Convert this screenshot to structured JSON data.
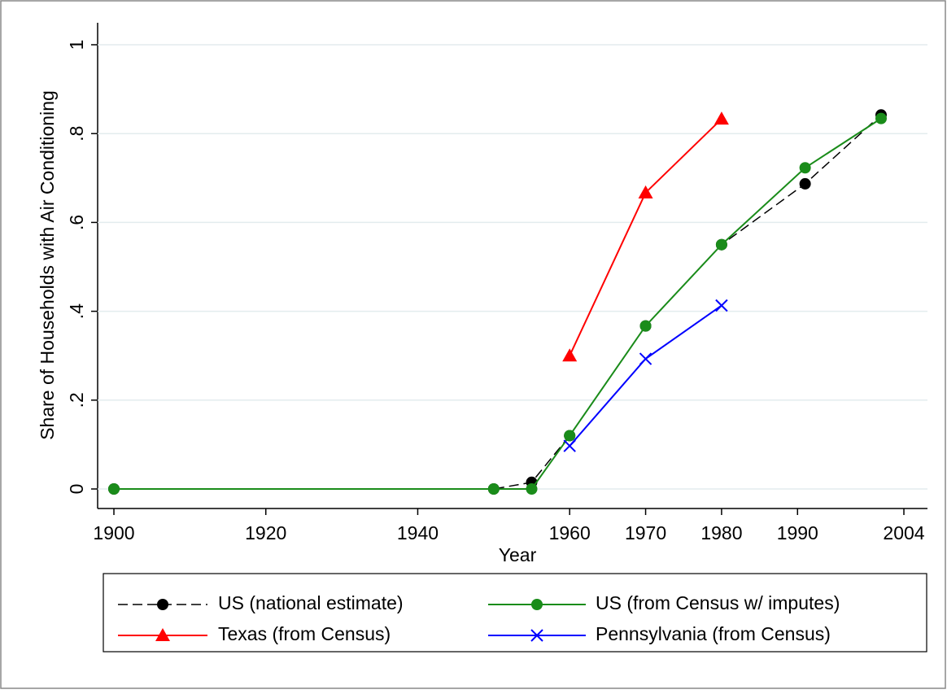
{
  "chart_data": {
    "type": "line",
    "x_label": "Year",
    "y_label": "Share of Households with Air Conditioning",
    "xlim": [
      1900,
      2004
    ],
    "xticks": [
      1900,
      1920,
      1940,
      1960,
      1970,
      1980,
      1990,
      2004
    ],
    "ylim": [
      0,
      1
    ],
    "yticks": [
      0,
      {
        "value": 0.2,
        "label": ".2"
      },
      {
        "value": 0.4,
        "label": ".4"
      },
      {
        "value": 0.6,
        "label": ".6"
      },
      {
        "value": 0.8,
        "label": ".8"
      },
      1
    ],
    "grid": true,
    "legend": "bottom",
    "series": [
      {
        "name": "US (national estimate)",
        "color": "#000000",
        "dash": true,
        "marker": "circle",
        "x": [
          1900,
          1950,
          1955,
          1960,
          1970,
          1980,
          1991,
          2001
        ],
        "values": [
          0,
          0,
          0.015,
          0.12,
          0.367,
          0.55,
          0.687,
          0.842
        ]
      },
      {
        "name": "US (from Census w/ imputes)",
        "color": "#1a8c1a",
        "dash": false,
        "marker": "circle",
        "x": [
          1900,
          1950,
          1955,
          1960,
          1970,
          1980,
          1991,
          2001
        ],
        "values": [
          0,
          0,
          0,
          0.12,
          0.367,
          0.55,
          0.723,
          0.834
        ]
      },
      {
        "name": "Texas (from Census)",
        "color": "#ff0000",
        "dash": false,
        "marker": "triangle",
        "x": [
          1960,
          1970,
          1980
        ],
        "values": [
          0.3,
          0.667,
          0.833
        ]
      },
      {
        "name": "Pennsylvania (from Census)",
        "color": "#0000ff",
        "dash": false,
        "marker": "x",
        "x": [
          1960,
          1970,
          1980
        ],
        "values": [
          0.097,
          0.293,
          0.413
        ]
      }
    ]
  }
}
